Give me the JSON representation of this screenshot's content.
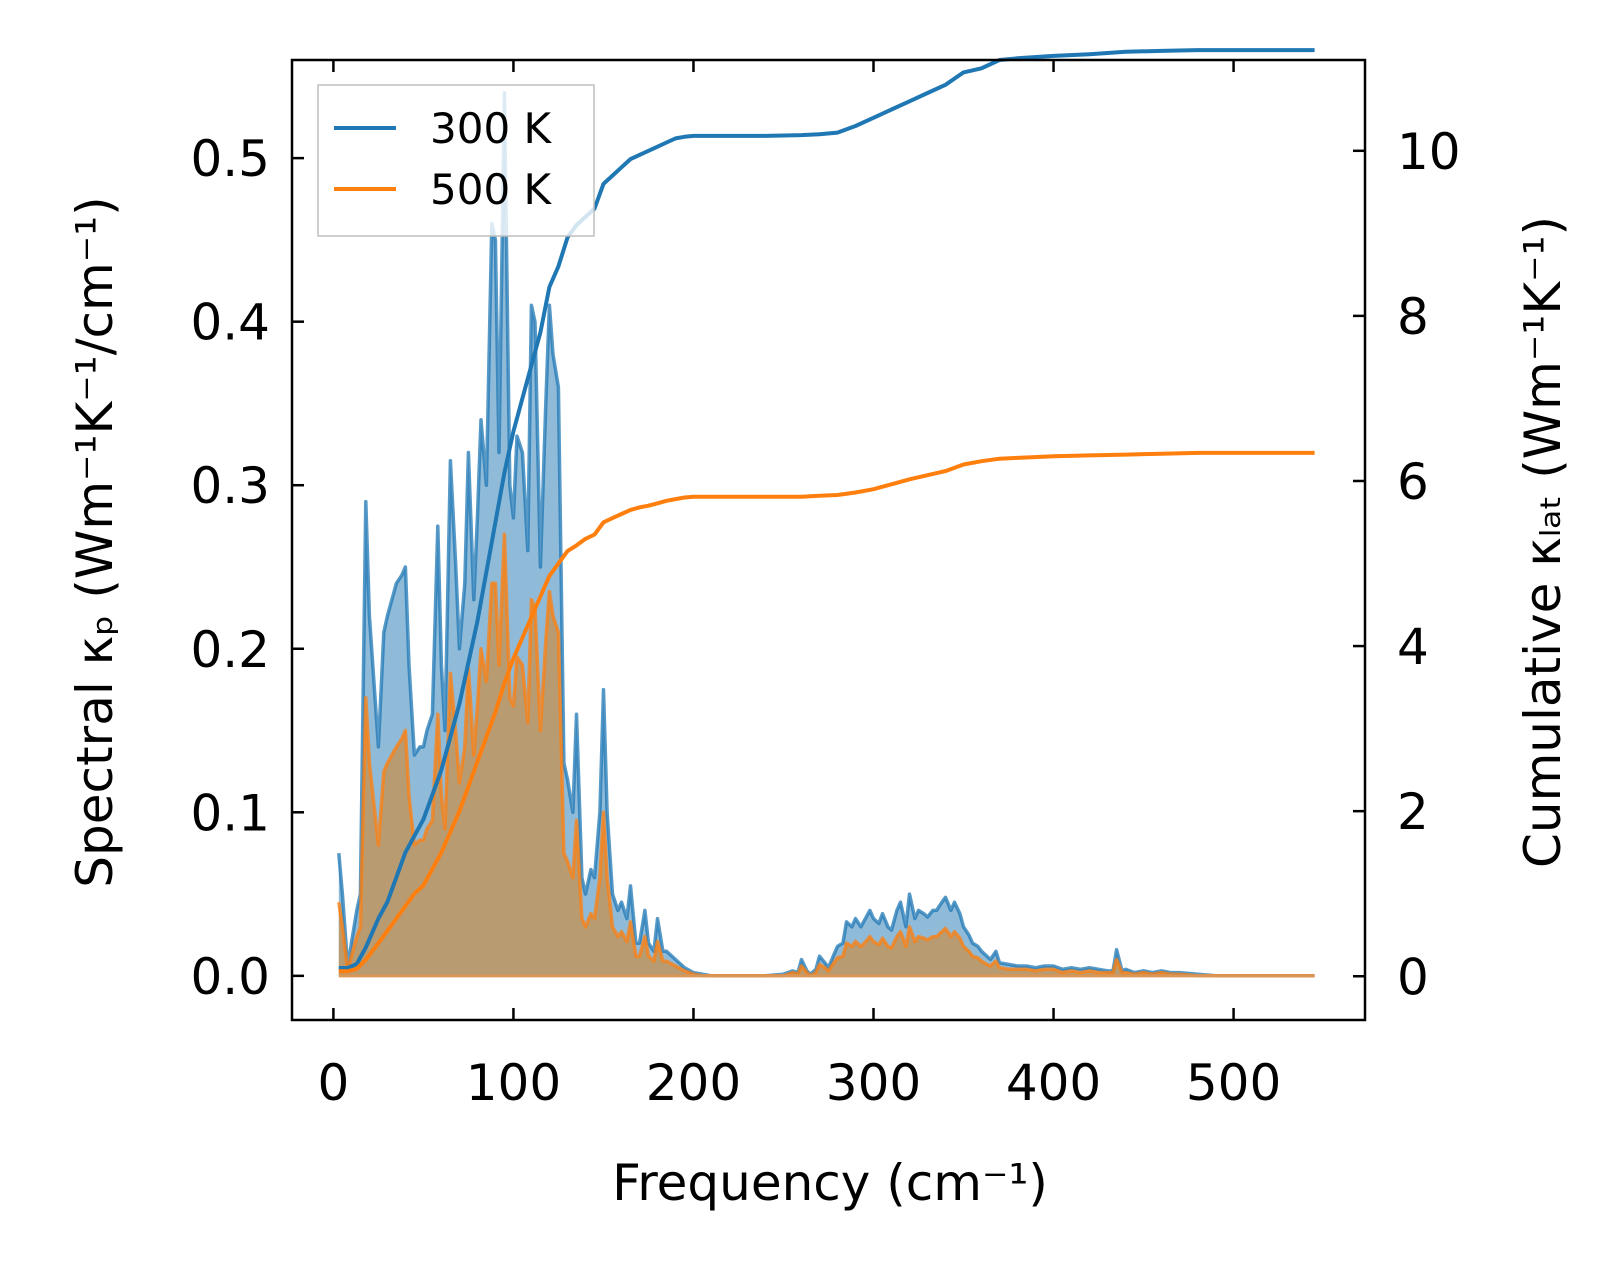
{
  "chart_data": {
    "type": "line",
    "x_label": "Frequency (cm⁻¹)",
    "y_left_label": "Spectral κₚ (Wm⁻¹K⁻¹/cm⁻¹)",
    "y_right_label": "Cumulative κₗₐₜ (Wm⁻¹K⁻¹)",
    "x_range": [
      -23,
      573
    ],
    "y_left_range": [
      -0.027,
      0.56
    ],
    "y_right_range": [
      -0.53,
      11.1
    ],
    "x_ticks": [
      0,
      100,
      200,
      300,
      400,
      500
    ],
    "y_left_ticks": [
      "0.0",
      "0.1",
      "0.2",
      "0.3",
      "0.4",
      "0.5"
    ],
    "y_left_tick_values": [
      0,
      0.1,
      0.2,
      0.3,
      0.4,
      0.5
    ],
    "y_right_ticks": [
      "0",
      "2",
      "4",
      "6",
      "8",
      "10"
    ],
    "y_right_tick_values": [
      0,
      2,
      4,
      6,
      8,
      10
    ],
    "legend_position": "upper-left",
    "colors": {
      "s300": "#1f77b4",
      "s500": "#ff7f0e",
      "fill300": "#1f77b4",
      "fill500": "#d08a3a"
    },
    "spectral_x": [
      3,
      5,
      8,
      10,
      13,
      15,
      18,
      20,
      25,
      28,
      30,
      35,
      38,
      40,
      42,
      45,
      48,
      50,
      52,
      55,
      58,
      60,
      62,
      65,
      68,
      70,
      73,
      75,
      78,
      80,
      82,
      85,
      88,
      90,
      92,
      95,
      98,
      100,
      102,
      105,
      108,
      110,
      112,
      115,
      118,
      120,
      122,
      125,
      128,
      130,
      133,
      135,
      138,
      140,
      143,
      145,
      148,
      150,
      152,
      155,
      158,
      160,
      163,
      165,
      168,
      170,
      173,
      175,
      178,
      180,
      183,
      185,
      190,
      195,
      200,
      205,
      210,
      220,
      230,
      240,
      250,
      255,
      258,
      260,
      263,
      265,
      268,
      270,
      273,
      275,
      278,
      280,
      283,
      285,
      288,
      290,
      293,
      295,
      298,
      300,
      303,
      305,
      308,
      310,
      313,
      315,
      318,
      320,
      323,
      325,
      328,
      330,
      333,
      335,
      338,
      340,
      343,
      345,
      348,
      350,
      353,
      355,
      358,
      360,
      363,
      365,
      368,
      370,
      375,
      380,
      385,
      390,
      395,
      400,
      405,
      410,
      415,
      420,
      425,
      430,
      433,
      435,
      438,
      440,
      445,
      450,
      455,
      460,
      465,
      470,
      480,
      490,
      500,
      520,
      545
    ],
    "spectral_300": [
      0.075,
      0.05,
      0.005,
      0.02,
      0.04,
      0.05,
      0.29,
      0.22,
      0.14,
      0.21,
      0.22,
      0.24,
      0.245,
      0.25,
      0.19,
      0.135,
      0.14,
      0.14,
      0.15,
      0.16,
      0.275,
      0.19,
      0.15,
      0.315,
      0.25,
      0.2,
      0.24,
      0.32,
      0.23,
      0.28,
      0.34,
      0.3,
      0.46,
      0.45,
      0.32,
      0.54,
      0.3,
      0.28,
      0.33,
      0.32,
      0.26,
      0.41,
      0.4,
      0.25,
      0.35,
      0.41,
      0.38,
      0.36,
      0.13,
      0.12,
      0.1,
      0.16,
      0.06,
      0.05,
      0.065,
      0.06,
      0.1,
      0.175,
      0.1,
      0.05,
      0.04,
      0.045,
      0.035,
      0.055,
      0.02,
      0.02,
      0.04,
      0.02,
      0.015,
      0.035,
      0.015,
      0.015,
      0.01,
      0.005,
      0.002,
      0.001,
      0.0,
      0.0,
      0.0,
      0.0,
      0.001,
      0.003,
      0.002,
      0.01,
      0.003,
      0.001,
      0.004,
      0.012,
      0.008,
      0.005,
      0.013,
      0.018,
      0.02,
      0.033,
      0.03,
      0.035,
      0.03,
      0.034,
      0.04,
      0.035,
      0.032,
      0.038,
      0.03,
      0.028,
      0.04,
      0.045,
      0.03,
      0.05,
      0.035,
      0.04,
      0.038,
      0.036,
      0.04,
      0.04,
      0.045,
      0.048,
      0.04,
      0.045,
      0.038,
      0.03,
      0.025,
      0.02,
      0.018,
      0.015,
      0.012,
      0.01,
      0.015,
      0.008,
      0.007,
      0.006,
      0.006,
      0.005,
      0.006,
      0.006,
      0.004,
      0.005,
      0.004,
      0.005,
      0.004,
      0.003,
      0.003,
      0.016,
      0.003,
      0.004,
      0.002,
      0.003,
      0.002,
      0.003,
      0.002,
      0.002,
      0.001,
      0.0,
      0.0,
      0.0,
      0.0
    ],
    "spectral_500": [
      0.045,
      0.03,
      0.003,
      0.012,
      0.024,
      0.03,
      0.17,
      0.13,
      0.08,
      0.125,
      0.13,
      0.14,
      0.145,
      0.15,
      0.11,
      0.08,
      0.083,
      0.083,
      0.09,
      0.095,
      0.16,
      0.11,
      0.09,
      0.185,
      0.148,
      0.118,
      0.14,
      0.188,
      0.135,
      0.165,
      0.2,
      0.18,
      0.24,
      0.24,
      0.19,
      0.27,
      0.17,
      0.165,
      0.195,
      0.19,
      0.155,
      0.23,
      0.225,
      0.15,
      0.205,
      0.235,
      0.22,
      0.21,
      0.075,
      0.07,
      0.06,
      0.095,
      0.035,
      0.03,
      0.038,
      0.035,
      0.06,
      0.1,
      0.06,
      0.03,
      0.024,
      0.027,
      0.021,
      0.033,
      0.012,
      0.012,
      0.024,
      0.012,
      0.009,
      0.021,
      0.009,
      0.009,
      0.006,
      0.003,
      0.001,
      0.0,
      0.0,
      0.0,
      0.0,
      0.0,
      0.0,
      0.002,
      0.001,
      0.006,
      0.002,
      0.0,
      0.002,
      0.007,
      0.005,
      0.003,
      0.008,
      0.011,
      0.012,
      0.02,
      0.018,
      0.021,
      0.018,
      0.02,
      0.024,
      0.021,
      0.019,
      0.023,
      0.018,
      0.017,
      0.024,
      0.027,
      0.018,
      0.03,
      0.021,
      0.024,
      0.023,
      0.022,
      0.024,
      0.024,
      0.027,
      0.029,
      0.024,
      0.027,
      0.023,
      0.018,
      0.015,
      0.012,
      0.011,
      0.009,
      0.007,
      0.006,
      0.009,
      0.005,
      0.004,
      0.004,
      0.004,
      0.003,
      0.004,
      0.004,
      0.002,
      0.003,
      0.002,
      0.003,
      0.002,
      0.002,
      0.002,
      0.01,
      0.002,
      0.002,
      0.001,
      0.002,
      0.001,
      0.002,
      0.001,
      0.001,
      0.0,
      0.0,
      0.0,
      0.0,
      0.0
    ],
    "cumulative_x": [
      3,
      8,
      13,
      18,
      25,
      30,
      35,
      40,
      45,
      50,
      55,
      60,
      65,
      70,
      75,
      80,
      85,
      90,
      95,
      100,
      105,
      110,
      115,
      120,
      125,
      130,
      135,
      140,
      145,
      150,
      155,
      160,
      165,
      170,
      175,
      180,
      185,
      190,
      195,
      200,
      210,
      220,
      240,
      260,
      270,
      280,
      290,
      300,
      310,
      320,
      330,
      340,
      350,
      360,
      370,
      380,
      400,
      420,
      440,
      460,
      480,
      500,
      520,
      545
    ],
    "cumulative_300": [
      0.1,
      0.1,
      0.15,
      0.35,
      0.7,
      0.9,
      1.2,
      1.5,
      1.7,
      1.9,
      2.2,
      2.5,
      2.9,
      3.3,
      3.8,
      4.3,
      4.9,
      5.5,
      6.1,
      6.6,
      7.0,
      7.4,
      7.8,
      8.35,
      8.6,
      8.95,
      9.1,
      9.2,
      9.3,
      9.6,
      9.7,
      9.8,
      9.9,
      9.95,
      10.0,
      10.05,
      10.1,
      10.15,
      10.17,
      10.18,
      10.18,
      10.18,
      10.18,
      10.19,
      10.2,
      10.22,
      10.3,
      10.4,
      10.5,
      10.6,
      10.7,
      10.8,
      10.95,
      11.0,
      11.1,
      11.12,
      11.15,
      11.17,
      11.2,
      11.21,
      11.22,
      11.22,
      11.22,
      11.22
    ],
    "cumulative_500": [
      0.06,
      0.06,
      0.09,
      0.2,
      0.4,
      0.55,
      0.7,
      0.85,
      1.0,
      1.1,
      1.3,
      1.5,
      1.75,
      2.0,
      2.3,
      2.6,
      2.9,
      3.2,
      3.55,
      3.85,
      4.1,
      4.35,
      4.6,
      4.85,
      5.0,
      5.15,
      5.22,
      5.3,
      5.35,
      5.5,
      5.55,
      5.6,
      5.65,
      5.68,
      5.7,
      5.73,
      5.76,
      5.78,
      5.8,
      5.81,
      5.81,
      5.81,
      5.81,
      5.81,
      5.82,
      5.83,
      5.86,
      5.9,
      5.96,
      6.02,
      6.07,
      6.12,
      6.2,
      6.24,
      6.27,
      6.28,
      6.3,
      6.31,
      6.32,
      6.33,
      6.34,
      6.34,
      6.34,
      6.34
    ],
    "series": [
      {
        "name": "300 K",
        "color": "#1f77b4"
      },
      {
        "name": "500 K",
        "color": "#ff7f0e"
      }
    ]
  }
}
